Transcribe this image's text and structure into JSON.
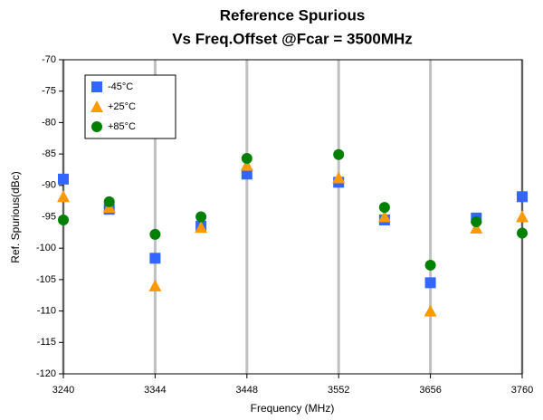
{
  "chart_data": {
    "type": "scatter",
    "title": "Reference Spurious",
    "subtitle": "Vs Freq.Offset @Fcar = 3500MHz",
    "x_label": "Frequency (MHz)",
    "y_label": "Ref. Spurious(dBc)",
    "x": [
      3240,
      3292,
      3344,
      3396,
      3448,
      3552,
      3604,
      3656,
      3708,
      3760
    ],
    "series": [
      {
        "name": "-45°C",
        "color": "#3366ff",
        "marker": "square",
        "values": [
          -89,
          -93.8,
          -101.6,
          -96.5,
          -88.2,
          -89.5,
          -95.5,
          -105.5,
          -95.2,
          -91.8
        ]
      },
      {
        "name": "+25°C",
        "color": "#ff9900",
        "marker": "triangle",
        "values": [
          -91.8,
          -93.5,
          -106,
          -96.7,
          -86.8,
          -88.8,
          -95,
          -110,
          -96.8,
          -95
        ]
      },
      {
        "name": "+85°C",
        "color": "#008000",
        "marker": "circle",
        "values": [
          -95.5,
          -92.6,
          -97.8,
          -95,
          -85.7,
          -85.1,
          -93.5,
          -102.7,
          -95.8,
          -97.6
        ]
      }
    ],
    "xlim": [
      3240,
      3760
    ],
    "xticks": [
      3240,
      3344,
      3448,
      3552,
      3656,
      3760
    ],
    "ylim": [
      -120,
      -70
    ],
    "yticks": [
      -120,
      -115,
      -110,
      -105,
      -100,
      -95,
      -90,
      -85,
      -80,
      -75,
      -70
    ],
    "grid": "x",
    "legend": "upper left"
  }
}
